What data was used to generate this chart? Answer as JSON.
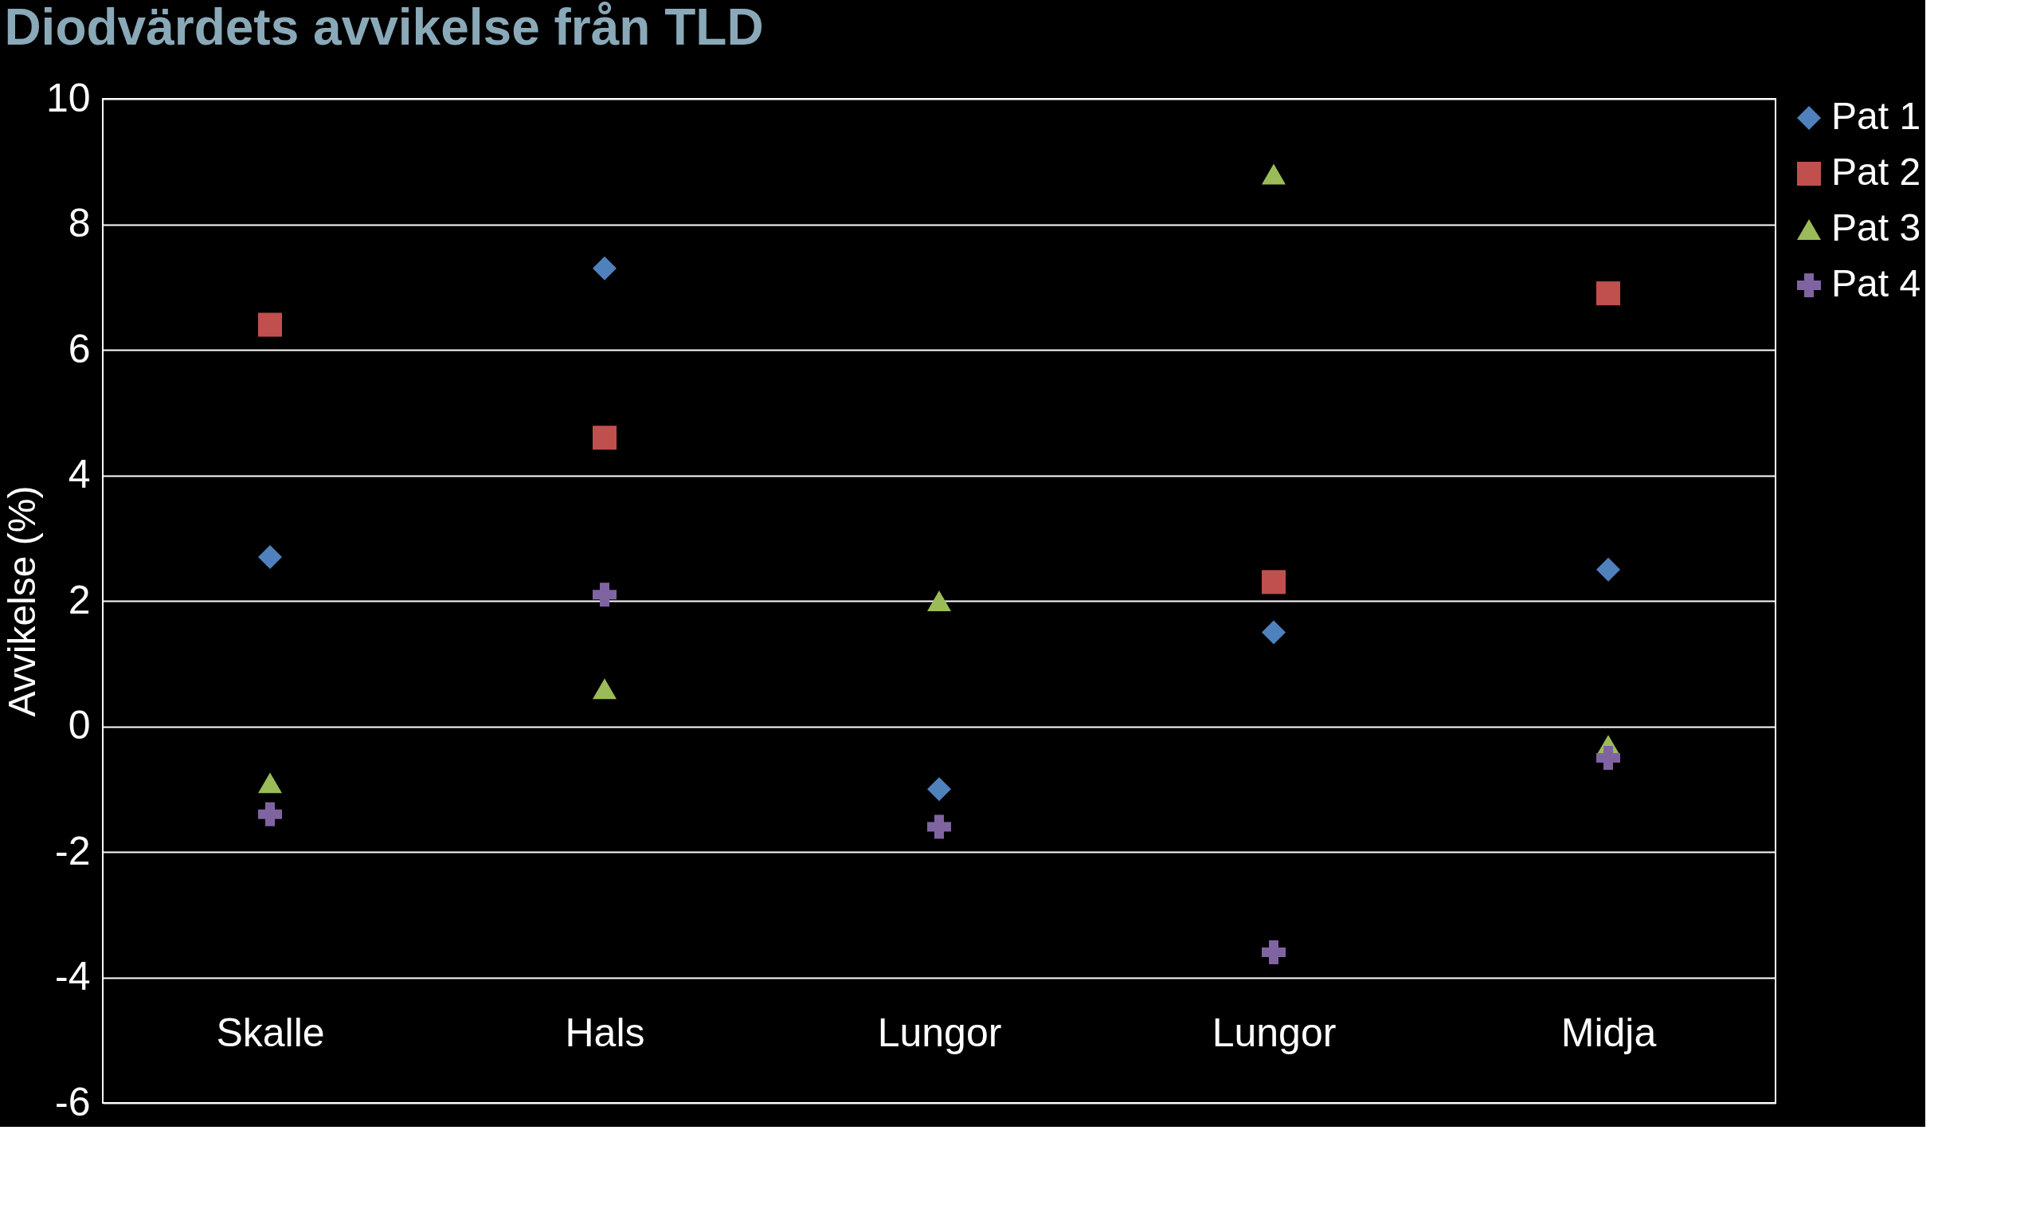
{
  "chart_data": {
    "type": "scatter",
    "title": "Diodvärdets avvikelse från TLD",
    "ylabel": "Avvikelse (%)",
    "categories": [
      "Skalle",
      "Hals",
      "Lungor",
      "Lungor",
      "Midja"
    ],
    "series": [
      {
        "name": "Pat 1",
        "color": "#4f81bd",
        "marker": "diamond",
        "values": [
          2.7,
          7.3,
          -1.0,
          1.5,
          2.5
        ]
      },
      {
        "name": "Pat 2",
        "color": "#c0504d",
        "marker": "square",
        "values": [
          6.4,
          4.6,
          null,
          2.3,
          6.9
        ]
      },
      {
        "name": "Pat 3",
        "color": "#9bbb59",
        "marker": "triangle",
        "values": [
          -0.9,
          0.6,
          2.0,
          8.8,
          -0.3
        ]
      },
      {
        "name": "Pat 4",
        "color": "#8064a2",
        "marker": "cross",
        "values": [
          -1.4,
          2.1,
          -1.6,
          -3.6,
          -0.5
        ]
      }
    ],
    "ylim": [
      -6,
      10
    ],
    "yticks": [
      -6,
      -4,
      -2,
      0,
      2,
      4,
      6,
      8,
      10
    ],
    "grid": "y",
    "legend": "right"
  }
}
